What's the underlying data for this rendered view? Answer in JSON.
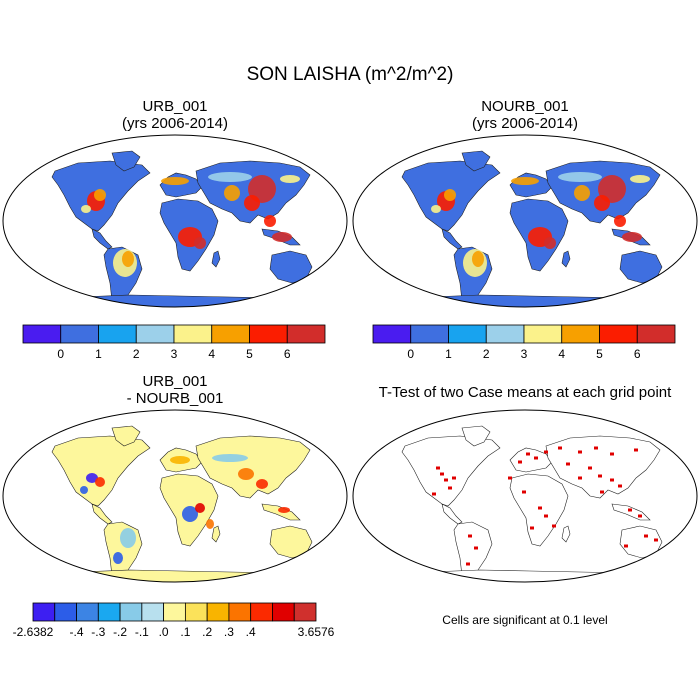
{
  "title": "SON LAISHA (m^2/m^2)",
  "panels": [
    {
      "title": "URB_001",
      "subtitle": "(yrs 2006-2014)"
    },
    {
      "title": "NOURB_001",
      "subtitle": "(yrs 2006-2014)"
    },
    {
      "title": "URB_001",
      "subtitle": "- NOURB_001"
    },
    {
      "title": "T-Test of two Case means at each grid point",
      "subtitle": ""
    }
  ],
  "colorbar_abs": {
    "labels": [
      "0",
      "1",
      "2",
      "3",
      "4",
      "5",
      "6"
    ],
    "colors": [
      "#4a1cf0",
      "#3f6fe0",
      "#18a3ef",
      "#9cd0ea",
      "#fbf28b",
      "#f7a000",
      "#fb1d00",
      "#d22d2b"
    ]
  },
  "colorbar_diff": {
    "labels": [
      "-2.6382",
      "-.4",
      "-.3",
      "-.2",
      "-.1",
      ".0",
      ".1",
      ".2",
      ".3",
      ".4",
      "3.6576"
    ],
    "colors": [
      "#3d1ff2",
      "#2c5de8",
      "#3c84e4",
      "#1aa8f0",
      "#88cbe8",
      "#b8e0ee",
      "#fdf79c",
      "#fbe25a",
      "#f9b400",
      "#fb7400",
      "#fb2a00",
      "#e00000",
      "#d0302d"
    ]
  },
  "significance_note": "Cells are significant at 0.1 level"
}
